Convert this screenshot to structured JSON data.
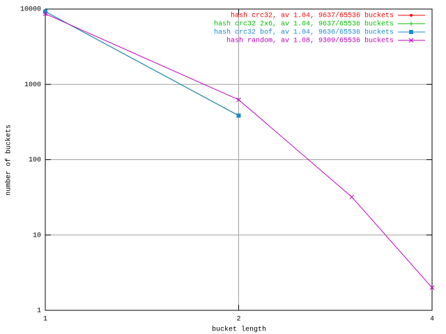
{
  "chart_data": {
    "type": "line",
    "xlabel": "bucket length",
    "ylabel": "number of buckets",
    "xlim": [
      1,
      4
    ],
    "xticks": [
      1,
      2,
      4
    ],
    "xscale": "log",
    "ylim": [
      1,
      10000
    ],
    "yticks": [
      1,
      10,
      100,
      1000,
      10000
    ],
    "yscale": "log",
    "grid": true,
    "legend": "top-right",
    "series": [
      {
        "name": "hash crc32, av 1.04, 9637/65536 buckets",
        "color": "#ff0000",
        "marker": "dot",
        "x": [
          1,
          2
        ],
        "values": [
          9252,
          385
        ]
      },
      {
        "name": "hash crc32 2x6, av 1.04, 9637/65536 buckets",
        "color": "#00c000",
        "marker": "plus",
        "x": [
          1,
          2
        ],
        "values": [
          9252,
          385
        ]
      },
      {
        "name": "hash crc32 bof, av 1.04, 9636/65536 buckets",
        "color": "#1a8ccc",
        "marker": "square",
        "x": [
          1,
          2
        ],
        "values": [
          9251,
          385
        ]
      },
      {
        "name": "hash random, av 1.08, 9309/65536 buckets",
        "color": "#c000c0",
        "marker": "cross",
        "x": [
          1,
          2,
          3,
          4
        ],
        "values": [
          8650,
          625,
          32,
          2
        ]
      }
    ]
  }
}
